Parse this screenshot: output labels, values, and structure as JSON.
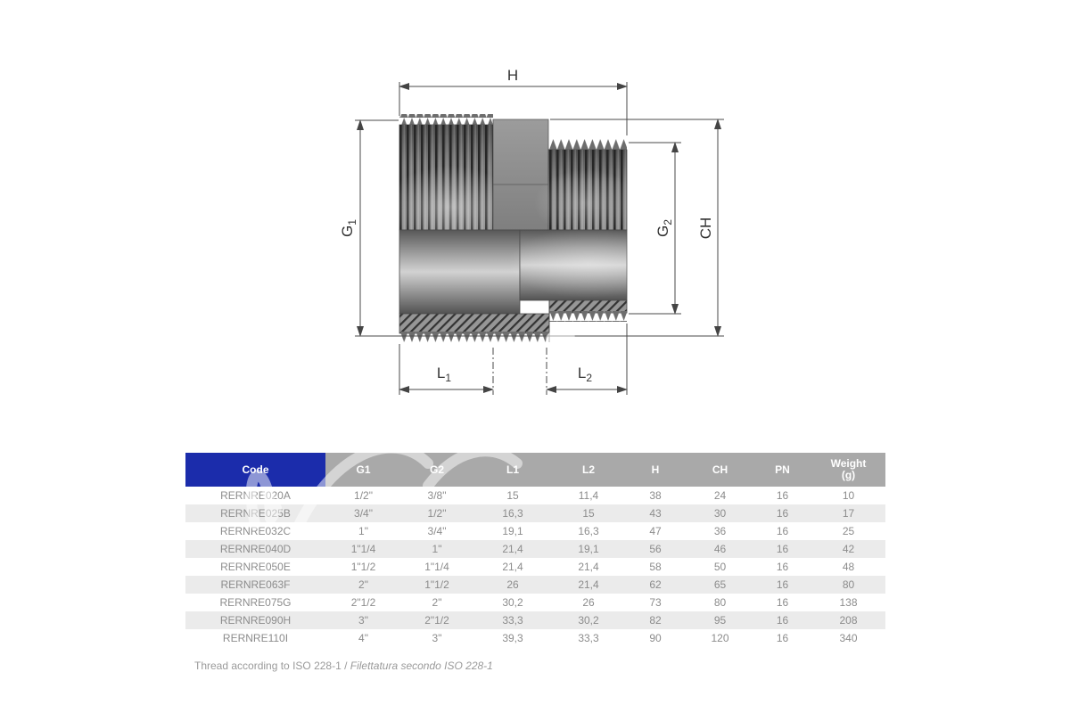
{
  "drawing": {
    "labels": {
      "h": {
        "base": "H",
        "sub": ""
      },
      "g1": {
        "base": "G",
        "sub": "1"
      },
      "g2": {
        "base": "G",
        "sub": "2"
      },
      "ch": {
        "base": "CH",
        "sub": ""
      },
      "l1": {
        "base": "L",
        "sub": "1"
      },
      "l2": {
        "base": "L",
        "sub": "2"
      }
    }
  },
  "table": {
    "headers": [
      {
        "key": "code",
        "label": "Code"
      },
      {
        "key": "g1",
        "label": "G1"
      },
      {
        "key": "g2",
        "label": "G2"
      },
      {
        "key": "l1",
        "label": "L1"
      },
      {
        "key": "l2",
        "label": "L2"
      },
      {
        "key": "h",
        "label": "H"
      },
      {
        "key": "ch",
        "label": "CH"
      },
      {
        "key": "pn",
        "label": "PN"
      },
      {
        "key": "weight",
        "label": "Weight",
        "label2": "(g)"
      }
    ],
    "rows": [
      [
        "RERNRE020A",
        "1/2\"",
        "3/8\"",
        "15",
        "11,4",
        "38",
        "24",
        "16",
        "10"
      ],
      [
        "RERNRE025B",
        "3/4\"",
        "1/2\"",
        "16,3",
        "15",
        "43",
        "30",
        "16",
        "17"
      ],
      [
        "RERNRE032C",
        "1\"",
        "3/4\"",
        "19,1",
        "16,3",
        "47",
        "36",
        "16",
        "25"
      ],
      [
        "RERNRE040D",
        "1\"1/4",
        "1\"",
        "21,4",
        "19,1",
        "56",
        "46",
        "16",
        "42"
      ],
      [
        "RERNRE050E",
        "1\"1/2",
        "1\"1/4",
        "21,4",
        "21,4",
        "58",
        "50",
        "16",
        "48"
      ],
      [
        "RERNRE063F",
        "2\"",
        "1\"1/2",
        "26",
        "21,4",
        "62",
        "65",
        "16",
        "80"
      ],
      [
        "RERNRE075G",
        "2\"1/2",
        "2\"",
        "30,2",
        "26",
        "73",
        "80",
        "16",
        "138"
      ],
      [
        "RERNRE090H",
        "3\"",
        "2\"1/2",
        "33,3",
        "30,2",
        "82",
        "95",
        "16",
        "208"
      ],
      [
        "RERNRE110I",
        "4\"",
        "3\"",
        "39,3",
        "33,3",
        "90",
        "120",
        "16",
        "340"
      ]
    ]
  },
  "footer": {
    "note_plain": "Thread according to ISO 228-1 / ",
    "note_italic": "Filettatura secondo ISO 228-1"
  },
  "colors": {
    "header_blue": "#1b2cab",
    "header_gray": "#a9a9a9",
    "row_alt_gray": "#ebebeb",
    "table_text": "#8c8c8c",
    "dimension_line": "#4a4a4a"
  }
}
